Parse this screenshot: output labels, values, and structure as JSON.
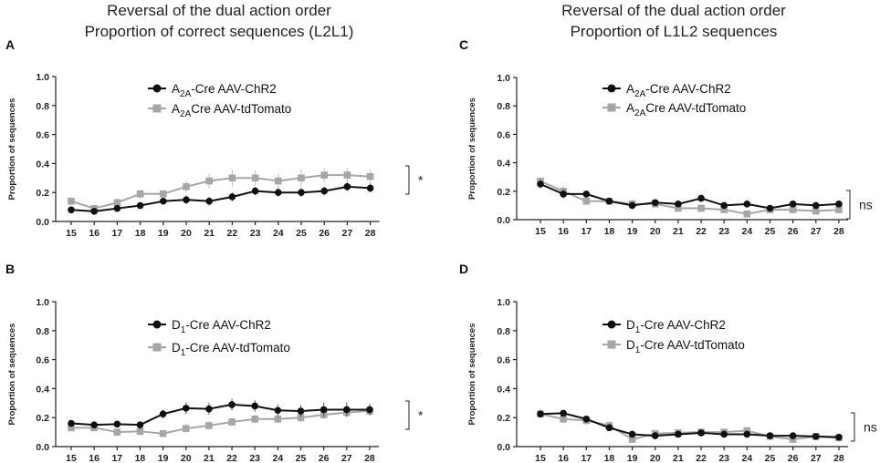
{
  "titles": {
    "left_line1": "Reversal of the dual action order",
    "left_line2": "Proportion of correct sequences (L2L1)",
    "right_line1": "Reversal of the dual action order",
    "right_line2": "Proportion of L1L2 sequences"
  },
  "colors": {
    "series_black": "#111111",
    "series_gray": "#a6a6a6",
    "axis": "#222222"
  },
  "chart_data": [
    {
      "panel": "A",
      "type": "line",
      "ylabel": "Proportion of sequences",
      "ylim": [
        0,
        1.0
      ],
      "yticks": [
        "0.0",
        "0.2",
        "0.4",
        "0.6",
        "0.8",
        "1.0"
      ],
      "x": [
        "15",
        "16",
        "17",
        "18",
        "19",
        "20",
        "21",
        "22",
        "23",
        "24",
        "25",
        "26",
        "27",
        "28"
      ],
      "legend_position": "top-center",
      "series": [
        {
          "name_main": "A",
          "name_sub": "2A",
          "name_rest": "-Cre AAV-ChR2",
          "marker": "circle",
          "color": "black",
          "values": [
            0.08,
            0.07,
            0.09,
            0.11,
            0.14,
            0.15,
            0.14,
            0.17,
            0.21,
            0.2,
            0.2,
            0.21,
            0.24,
            0.23
          ],
          "errors": [
            0.01,
            0.01,
            0.01,
            0.02,
            0.02,
            0.03,
            0.03,
            0.03,
            0.03,
            0.03,
            0.03,
            0.03,
            0.03,
            0.03
          ]
        },
        {
          "name_main": "A",
          "name_sub": "2A",
          "name_rest": "Cre AAV-tdTomato",
          "marker": "square",
          "color": "gray",
          "values": [
            0.14,
            0.09,
            0.13,
            0.19,
            0.19,
            0.24,
            0.28,
            0.3,
            0.3,
            0.28,
            0.3,
            0.32,
            0.32,
            0.31
          ],
          "errors": [
            0.03,
            0.02,
            0.02,
            0.03,
            0.03,
            0.04,
            0.05,
            0.06,
            0.05,
            0.05,
            0.06,
            0.05,
            0.05,
            0.05
          ]
        }
      ],
      "significance": "*"
    },
    {
      "panel": "C",
      "type": "line",
      "ylabel": "Proportion of sequences",
      "ylim": [
        0,
        1.0
      ],
      "yticks": [
        "0.0",
        "0.2",
        "0.4",
        "0.6",
        "0.8",
        "1.0"
      ],
      "x": [
        "15",
        "16",
        "17",
        "18",
        "19",
        "20",
        "21",
        "22",
        "23",
        "24",
        "25",
        "26",
        "27",
        "28"
      ],
      "legend_position": "top-center",
      "series": [
        {
          "name_main": "A",
          "name_sub": "2A",
          "name_rest": "-Cre AAV-ChR2",
          "marker": "circle",
          "color": "black",
          "values": [
            0.25,
            0.18,
            0.18,
            0.13,
            0.1,
            0.12,
            0.11,
            0.15,
            0.1,
            0.11,
            0.08,
            0.11,
            0.1,
            0.11
          ],
          "errors": [
            0.03,
            0.03,
            0.02,
            0.02,
            0.02,
            0.02,
            0.02,
            0.02,
            0.02,
            0.02,
            0.02,
            0.02,
            0.02,
            0.02
          ]
        },
        {
          "name_main": "A",
          "name_sub": "2A",
          "name_rest": "Cre AAV-tdTomato",
          "marker": "square",
          "color": "gray",
          "values": [
            0.27,
            0.2,
            0.13,
            0.13,
            0.11,
            0.11,
            0.08,
            0.08,
            0.07,
            0.04,
            0.07,
            0.07,
            0.06,
            0.07
          ],
          "errors": [
            0.03,
            0.04,
            0.03,
            0.02,
            0.03,
            0.02,
            0.02,
            0.02,
            0.02,
            0.01,
            0.02,
            0.02,
            0.02,
            0.02
          ]
        }
      ],
      "significance": "ns"
    },
    {
      "panel": "B",
      "type": "line",
      "ylabel": "Proportion of sequences",
      "ylim": [
        0,
        1.0
      ],
      "yticks": [
        "0.0",
        "0.2",
        "0.4",
        "0.6",
        "0.8",
        "1.0"
      ],
      "x": [
        "15",
        "16",
        "17",
        "18",
        "19",
        "20",
        "21",
        "22",
        "23",
        "24",
        "25",
        "26",
        "27",
        "28"
      ],
      "legend_position": "center",
      "series": [
        {
          "name_main": "D",
          "name_sub": "1",
          "name_rest": "-Cre AAV-ChR2",
          "marker": "circle",
          "color": "black",
          "values": [
            0.16,
            0.15,
            0.155,
            0.15,
            0.225,
            0.265,
            0.26,
            0.29,
            0.28,
            0.25,
            0.245,
            0.255,
            0.255,
            0.255
          ],
          "errors": [
            0.02,
            0.02,
            0.02,
            0.02,
            0.03,
            0.04,
            0.04,
            0.04,
            0.04,
            0.04,
            0.04,
            0.05,
            0.05,
            0.04
          ]
        },
        {
          "name_main": "D",
          "name_sub": "1",
          "name_rest": "-Cre AAV-tdTomato",
          "marker": "square",
          "color": "gray",
          "values": [
            0.13,
            0.13,
            0.1,
            0.105,
            0.09,
            0.125,
            0.145,
            0.17,
            0.19,
            0.19,
            0.2,
            0.22,
            0.235,
            0.245
          ],
          "errors": [
            0.02,
            0.02,
            0.02,
            0.02,
            0.02,
            0.03,
            0.03,
            0.03,
            0.03,
            0.03,
            0.03,
            0.03,
            0.03,
            0.03
          ]
        }
      ],
      "significance": "*"
    },
    {
      "panel": "D",
      "type": "line",
      "ylabel": "Proportion of sequences",
      "ylim": [
        0,
        1.0
      ],
      "yticks": [
        "0.0",
        "0.2",
        "0.4",
        "0.6",
        "0.8",
        "1.0"
      ],
      "x": [
        "15",
        "16",
        "17",
        "18",
        "19",
        "20",
        "21",
        "22",
        "23",
        "24",
        "25",
        "26",
        "27",
        "28"
      ],
      "legend_position": "center",
      "series": [
        {
          "name_main": "D",
          "name_sub": "1",
          "name_rest": "-Cre AAV-ChR2",
          "marker": "circle",
          "color": "black",
          "values": [
            0.225,
            0.23,
            0.19,
            0.13,
            0.085,
            0.075,
            0.085,
            0.095,
            0.085,
            0.085,
            0.075,
            0.075,
            0.07,
            0.065
          ],
          "errors": [
            0.02,
            0.02,
            0.02,
            0.02,
            0.02,
            0.01,
            0.01,
            0.01,
            0.01,
            0.01,
            0.01,
            0.01,
            0.01,
            0.01
          ]
        },
        {
          "name_main": "D",
          "name_sub": "1",
          "name_rest": "-Cre AAV-tdTomato",
          "marker": "square",
          "color": "gray",
          "values": [
            0.225,
            0.19,
            0.18,
            0.145,
            0.05,
            0.09,
            0.095,
            0.1,
            0.1,
            0.11,
            0.07,
            0.05,
            0.07,
            0.06
          ],
          "errors": [
            0.03,
            0.03,
            0.03,
            0.03,
            0.02,
            0.02,
            0.02,
            0.02,
            0.02,
            0.02,
            0.02,
            0.02,
            0.02,
            0.02
          ]
        }
      ],
      "significance": "ns"
    }
  ]
}
